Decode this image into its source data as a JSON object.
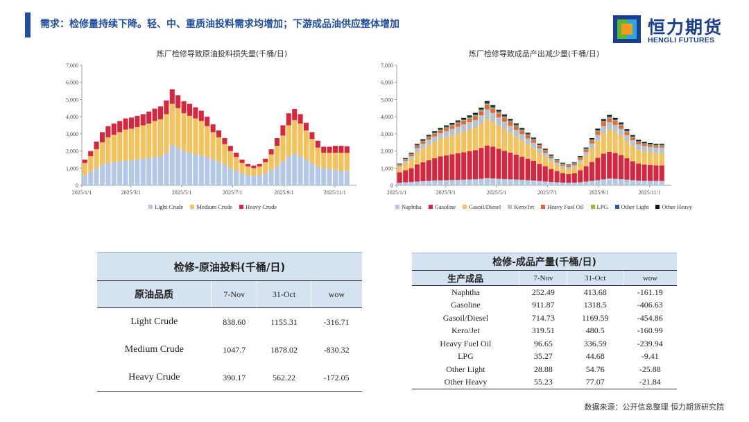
{
  "header": {
    "title": "需求：检修量持续下降。轻、中、重质油投料需求均增加；下游成品油供应整体增加"
  },
  "logo": {
    "cn": "恒力期货",
    "en": "HENGLI FUTURES",
    "colors": {
      "blue": "#1a3f8f",
      "orange": "#f39a1e",
      "green": "#5bb531",
      "light_blue": "#29a9e1"
    }
  },
  "chart_data": [
    {
      "type": "bar",
      "stacked": true,
      "title": "炼厂检修导致原油投料损失量(千桶/日)",
      "ylim": [
        0,
        7000
      ],
      "yticks": [
        0,
        1000,
        2000,
        3000,
        4000,
        5000,
        6000,
        7000
      ],
      "ytick_labels": [
        "0",
        "1,000",
        "2,000",
        "3,000",
        "4,000",
        "5,000",
        "6,000",
        "7,000"
      ],
      "xtick_labels": [
        "2025/1/1",
        "2025/3/1",
        "2025/5/1",
        "2025/7/1",
        "2025/9/1",
        "2025/11/1"
      ],
      "legend_position": "bottom",
      "x_days": [
        0,
        7,
        14,
        21,
        28,
        35,
        42,
        49,
        56,
        63,
        70,
        77,
        84,
        91,
        98,
        105,
        112,
        119,
        126,
        133,
        140,
        147,
        154,
        161,
        168,
        175,
        182,
        189,
        196,
        203,
        210,
        217,
        224,
        231,
        238,
        245,
        252,
        259,
        266,
        273,
        280,
        287,
        294,
        301,
        308,
        315
      ],
      "series": [
        {
          "name": "Light Crude",
          "color": "#b4c7e7",
          "values": [
            600,
            800,
            1000,
            1200,
            1300,
            1350,
            1400,
            1450,
            1450,
            1500,
            1550,
            1600,
            1650,
            1700,
            1900,
            2350,
            2200,
            2000,
            1900,
            1800,
            1750,
            1650,
            1500,
            1400,
            1200,
            1000,
            850,
            700,
            600,
            550,
            600,
            700,
            900,
            1100,
            1400,
            1700,
            1850,
            1700,
            1500,
            1300,
            1100,
            1000,
            950,
            900,
            850,
            840
          ]
        },
        {
          "name": "Medium Crude",
          "color": "#f5c15c",
          "values": [
            700,
            900,
            1100,
            1300,
            1500,
            1600,
            1700,
            1800,
            1850,
            1900,
            1950,
            2000,
            2100,
            2150,
            2250,
            2400,
            2300,
            2200,
            2150,
            2100,
            2000,
            1800,
            1600,
            1400,
            1200,
            1000,
            800,
            600,
            500,
            450,
            500,
            650,
            900,
            1200,
            1500,
            1800,
            1950,
            1900,
            1700,
            1400,
            1100,
            900,
            950,
            1000,
            1050,
            1048
          ]
        },
        {
          "name": "Heavy Crude",
          "color": "#d7263d",
          "values": [
            200,
            300,
            450,
            600,
            650,
            650,
            650,
            650,
            650,
            650,
            650,
            700,
            720,
            750,
            800,
            850,
            750,
            700,
            700,
            650,
            600,
            550,
            450,
            400,
            350,
            300,
            250,
            200,
            150,
            150,
            150,
            200,
            300,
            450,
            600,
            700,
            650,
            550,
            450,
            400,
            400,
            350,
            350,
            400,
            400,
            390
          ]
        }
      ]
    },
    {
      "type": "bar",
      "stacked": true,
      "title": "炼厂检修导致成品产出减少量(千桶/日)",
      "ylim": [
        0,
        7000
      ],
      "yticks": [
        0,
        1000,
        2000,
        3000,
        4000,
        5000,
        6000,
        7000
      ],
      "ytick_labels": [
        "0",
        "1,000",
        "2,000",
        "3,000",
        "4,000",
        "5,000",
        "6,000",
        "7,000"
      ],
      "xtick_labels": [
        "2025/1/1",
        "2025/3/1",
        "2025/5/1",
        "2025/7/1",
        "2025/9/1",
        "2025/11/1"
      ],
      "legend_position": "bottom",
      "x_days": [
        0,
        7,
        14,
        21,
        28,
        35,
        42,
        49,
        56,
        63,
        70,
        77,
        84,
        91,
        98,
        105,
        112,
        119,
        126,
        133,
        140,
        147,
        154,
        161,
        168,
        175,
        182,
        189,
        196,
        203,
        210,
        217,
        224,
        231,
        238,
        245,
        252,
        259,
        266,
        273,
        280,
        287,
        294,
        301,
        308,
        315
      ],
      "series": [
        {
          "name": "Naphtha",
          "color": "#b4c7e7",
          "values": [
            150,
            180,
            200,
            220,
            240,
            260,
            280,
            290,
            300,
            310,
            320,
            330,
            340,
            350,
            380,
            420,
            400,
            380,
            360,
            350,
            340,
            320,
            300,
            280,
            250,
            220,
            200,
            180,
            160,
            150,
            160,
            180,
            220,
            260,
            300,
            350,
            400,
            380,
            360,
            330,
            300,
            270,
            260,
            255,
            252,
            252
          ]
        },
        {
          "name": "Gasoline",
          "color": "#d7263d",
          "values": [
            600,
            700,
            800,
            1000,
            1100,
            1200,
            1300,
            1400,
            1450,
            1500,
            1550,
            1600,
            1650,
            1700,
            1800,
            1900,
            1850,
            1750,
            1650,
            1550,
            1450,
            1350,
            1250,
            1150,
            1000,
            900,
            750,
            650,
            550,
            500,
            550,
            700,
            900,
            1100,
            1300,
            1500,
            1550,
            1500,
            1400,
            1250,
            1100,
            1000,
            950,
            930,
            912,
            912
          ]
        },
        {
          "name": "Gasoil/Diesel",
          "color": "#f5c15c",
          "values": [
            300,
            400,
            500,
            700,
            800,
            900,
            950,
            1000,
            1050,
            1100,
            1150,
            1200,
            1250,
            1300,
            1400,
            1550,
            1450,
            1350,
            1250,
            1150,
            1050,
            950,
            850,
            750,
            650,
            550,
            450,
            350,
            300,
            280,
            320,
            450,
            600,
            800,
            1000,
            1200,
            1300,
            1250,
            1150,
            1000,
            900,
            800,
            760,
            740,
            715,
            715
          ]
        },
        {
          "name": "Kero/Jet",
          "color": "#b8c2cc",
          "values": [
            100,
            150,
            200,
            250,
            280,
            300,
            320,
            340,
            360,
            380,
            400,
            420,
            440,
            460,
            500,
            560,
            520,
            480,
            450,
            420,
            390,
            360,
            330,
            300,
            260,
            220,
            180,
            150,
            130,
            120,
            130,
            160,
            220,
            280,
            340,
            400,
            420,
            400,
            380,
            350,
            330,
            320,
            320,
            320,
            320,
            320
          ]
        },
        {
          "name": "Heavy Fuel Oil",
          "color": "#e2673a",
          "values": [
            60,
            80,
            100,
            120,
            130,
            140,
            150,
            160,
            170,
            180,
            190,
            200,
            210,
            220,
            240,
            260,
            250,
            240,
            230,
            220,
            210,
            200,
            180,
            160,
            140,
            120,
            100,
            90,
            80,
            80,
            90,
            110,
            140,
            170,
            200,
            230,
            240,
            220,
            200,
            180,
            150,
            120,
            110,
            100,
            97,
            97
          ]
        },
        {
          "name": "LPG",
          "color": "#8fc03c",
          "values": [
            20,
            25,
            30,
            35,
            40,
            40,
            45,
            45,
            50,
            50,
            50,
            55,
            55,
            60,
            60,
            65,
            60,
            58,
            55,
            52,
            50,
            48,
            45,
            42,
            40,
            38,
            35,
            32,
            30,
            30,
            30,
            32,
            36,
            40,
            45,
            50,
            52,
            50,
            48,
            45,
            42,
            40,
            38,
            36,
            35,
            35
          ]
        },
        {
          "name": "Other Light",
          "color": "#2e5aa8",
          "values": [
            20,
            25,
            30,
            35,
            40,
            40,
            42,
            45,
            48,
            50,
            52,
            54,
            56,
            58,
            60,
            65,
            62,
            60,
            58,
            55,
            52,
            50,
            48,
            45,
            42,
            40,
            38,
            35,
            32,
            30,
            32,
            35,
            40,
            45,
            50,
            55,
            58,
            55,
            50,
            45,
            40,
            35,
            32,
            30,
            29,
            29
          ]
        },
        {
          "name": "Other Heavy",
          "color": "#111111",
          "values": [
            20,
            30,
            40,
            50,
            55,
            60,
            62,
            64,
            66,
            68,
            70,
            72,
            74,
            76,
            80,
            90,
            85,
            80,
            75,
            70,
            66,
            62,
            58,
            54,
            50,
            45,
            40,
            35,
            30,
            28,
            30,
            35,
            45,
            55,
            65,
            75,
            80,
            78,
            74,
            70,
            66,
            62,
            60,
            58,
            56,
            55
          ]
        }
      ]
    }
  ],
  "table_crude": {
    "caption": "检修-原油投料(千桶/日)",
    "headers": [
      "原油品质",
      "7-Nov",
      "31-Oct",
      "wow"
    ],
    "rows": [
      {
        "name": "Light Crude",
        "v1": "838.60",
        "v2": "1155.31",
        "v3": "-316.71"
      },
      {
        "name": "Medium Crude",
        "v1": "1047.7",
        "v2": "1878.02",
        "v3": "-830.32"
      },
      {
        "name": "Heavy Crude",
        "v1": "390.17",
        "v2": "562.22",
        "v3": "-172.05"
      }
    ]
  },
  "table_products": {
    "caption": "检修-成品产量(千桶/日)",
    "headers": [
      "生产成品",
      "7-Nov",
      "31-Oct",
      "wow"
    ],
    "rows": [
      {
        "name": "Naphtha",
        "v1": "252.49",
        "v2": "413.68",
        "v3": "-161.19"
      },
      {
        "name": "Gasoline",
        "v1": "911.87",
        "v2": "1318.5",
        "v3": "-406.63"
      },
      {
        "name": "Gasoil/Diesel",
        "v1": "714.73",
        "v2": "1169.59",
        "v3": "-454.86"
      },
      {
        "name": "Kero/Jet",
        "v1": "319.51",
        "v2": "480.5",
        "v3": "-160.99"
      },
      {
        "name": "Heavy Fuel Oil",
        "v1": "96.65",
        "v2": "336.59",
        "v3": "-239.94"
      },
      {
        "name": "LPG",
        "v1": "35.27",
        "v2": "44.68",
        "v3": "-9.41"
      },
      {
        "name": "Other Light",
        "v1": "28.88",
        "v2": "54.76",
        "v3": "-25.88"
      },
      {
        "name": "Other Heavy",
        "v1": "55.23",
        "v2": "77.07",
        "v3": "-21.84"
      }
    ]
  },
  "footer": {
    "source": "数据来源：公开信息整理  恒力期货研究院"
  }
}
